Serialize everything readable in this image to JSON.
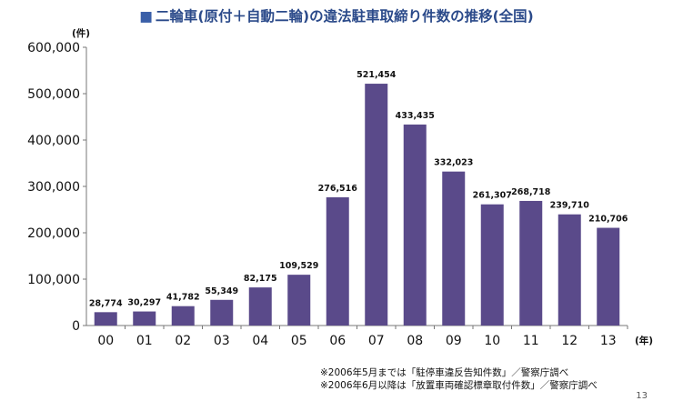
{
  "title": {
    "marker": "■",
    "text": "二輪車(原付＋自動二輪)の違法駐車取締り件数の推移(全国)"
  },
  "chart_data": {
    "type": "bar",
    "title": "二輪車(原付＋自動二輪)の違法駐車取締り件数の推移(全国)",
    "ylabel": "(件)",
    "xlabel": "(年)",
    "categories": [
      "00",
      "01",
      "02",
      "03",
      "04",
      "05",
      "06",
      "07",
      "08",
      "09",
      "10",
      "11",
      "12",
      "13"
    ],
    "values": [
      28774,
      30297,
      41782,
      55349,
      82175,
      109529,
      276516,
      521454,
      433435,
      332023,
      261307,
      268718,
      239710,
      210706
    ],
    "value_labels": [
      "28,774",
      "30,297",
      "41,782",
      "55,349",
      "82,175",
      "109,529",
      "276,516",
      "521,454",
      "433,435",
      "332,023",
      "261,307",
      "268,718",
      "239,710",
      "210,706"
    ],
    "ylim": [
      0,
      600000
    ],
    "yticks": [
      0,
      100000,
      200000,
      300000,
      400000,
      500000,
      600000
    ],
    "ytick_labels": [
      "0",
      "100,000",
      "200,000",
      "300,000",
      "400,000",
      "500,000",
      "600,000"
    ],
    "bar_color": "#5a4a8a",
    "grid": false,
    "legend": "none"
  },
  "notes": [
    "※2006年5月までは「駐停車違反告知件数」／警察庁調べ",
    "※2006年6月以降は「放置車両確認標章取付件数」／警察庁調べ"
  ],
  "page_number": "13"
}
